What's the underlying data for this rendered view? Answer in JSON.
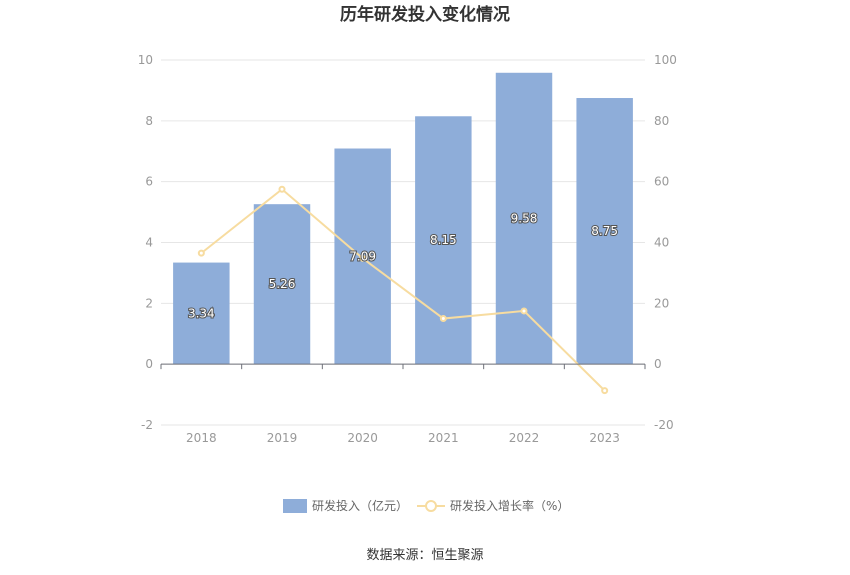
{
  "chart_data": {
    "type": "bar",
    "title": "历年研发投入变化情况",
    "categories": [
      "2018",
      "2019",
      "2020",
      "2021",
      "2022",
      "2023"
    ],
    "series": [
      {
        "name": "研发投入（亿元）",
        "type": "bar",
        "axis": "left",
        "color": "#8eadd9",
        "values": [
          3.34,
          5.26,
          7.09,
          8.15,
          9.58,
          8.75
        ]
      },
      {
        "name": "研发投入增长率（%）",
        "type": "line",
        "axis": "right",
        "color": "#f7dca0",
        "values": [
          36.5,
          57.5,
          34.8,
          15.0,
          17.5,
          -8.7
        ]
      }
    ],
    "ylim_left": [
      -2,
      10
    ],
    "yticks_left": [
      "-2",
      "0",
      "2",
      "4",
      "6",
      "8",
      "10"
    ],
    "ylim_right": [
      -20,
      100
    ],
    "yticks_right": [
      "-20",
      "0",
      "20",
      "40",
      "60",
      "80",
      "100"
    ],
    "grid": true,
    "legend_position": "bottom"
  },
  "source_text": "数据来源：恒生聚源"
}
